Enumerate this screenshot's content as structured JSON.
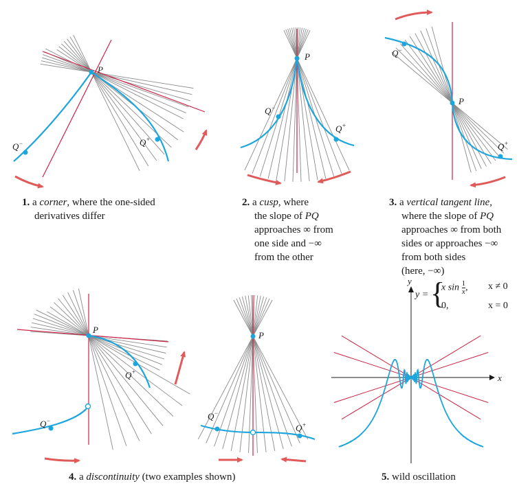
{
  "colors": {
    "curve": "#1ea5dc",
    "secant": "#8a8a8a",
    "tangent": "#cc2244",
    "arrow": "#e05a5a"
  },
  "labels": {
    "P": "P",
    "Q": "Q",
    "minus": "−",
    "plus": "+",
    "y_axis": "y",
    "x_axis": "x"
  },
  "captions": {
    "c1": {
      "num": "1.",
      "pre": "a ",
      "em": "corner",
      "post": ", where the one-sided",
      "line2": "derivatives differ"
    },
    "c2": {
      "num": "2.",
      "pre": "a ",
      "em": "cusp",
      "post": ", where",
      "line2": "the slope of",
      "em2": "PQ",
      "line3": "approaches ∞ from",
      "line4": "one side and −∞",
      "line5": "from the other"
    },
    "c3": {
      "num": "3.",
      "pre": "a ",
      "em": "vertical tangent line",
      "post": ",",
      "line2": "where the slope of",
      "em2": "PQ",
      "line3": "approaches ∞ from both",
      "line4": "sides or approaches −∞",
      "line5": "from both sides",
      "line6": "(here, −∞)"
    },
    "c4": {
      "num": "4.",
      "pre": "a ",
      "em": "discontinuity",
      "post": " (two examples shown)"
    },
    "c5": {
      "num": "5.",
      "text": "wild oscillation"
    }
  },
  "equation": {
    "lhs": "y =",
    "row1_expr": "x sin",
    "frac_num": "1",
    "frac_den": "x",
    "row1_cond": "x ≠ 0",
    "row2_expr": "0,",
    "row2_cond": "x = 0",
    "comma": ","
  }
}
